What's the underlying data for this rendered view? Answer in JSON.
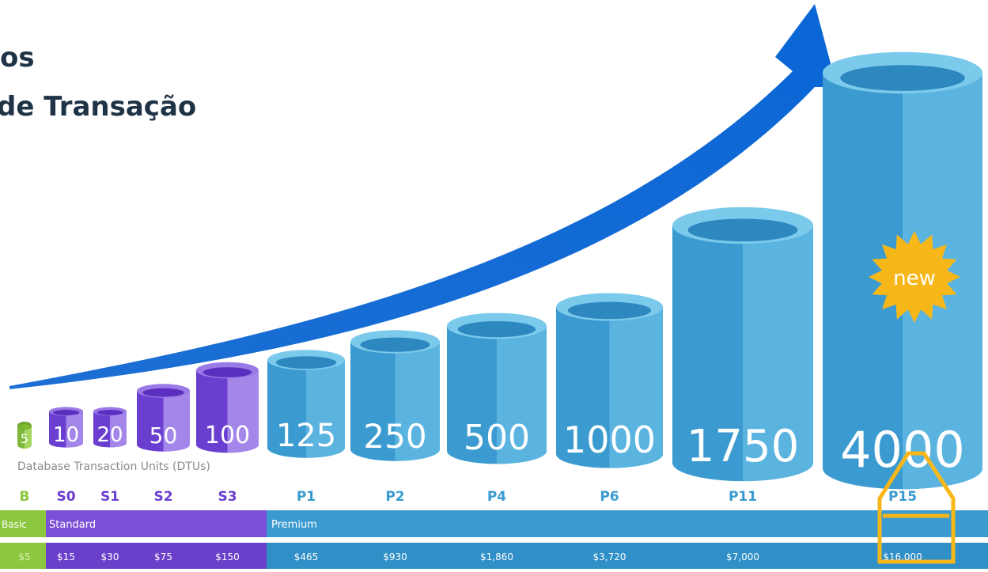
{
  "title": {
    "lines": [
      "os",
      "de Transação"
    ]
  },
  "cylinders": [
    {
      "dtu": "5",
      "tier": "B",
      "price": "$5"
    },
    {
      "dtu": "10",
      "tier": "S0",
      "price": "$15"
    },
    {
      "dtu": "20",
      "tier": "S1",
      "price": "$30"
    },
    {
      "dtu": "50",
      "tier": "S2",
      "price": "$75"
    },
    {
      "dtu": "100",
      "tier": "S3",
      "price": "$150"
    },
    {
      "dtu": "125",
      "tier": "P1",
      "price": "$465"
    },
    {
      "dtu": "250",
      "tier": "P2",
      "price": "$930"
    },
    {
      "dtu": "500",
      "tier": "P4",
      "price": "$1,860"
    },
    {
      "dtu": "1000",
      "tier": "P6",
      "price": "$3,720"
    },
    {
      "dtu": "1750",
      "tier": "P11",
      "price": "$7,000"
    },
    {
      "dtu": "4000",
      "tier": "P15",
      "price": "$16,000"
    }
  ],
  "axis_caption": "Database Transaction Units (DTUs)",
  "bands": [
    "Basic",
    "Standard",
    "Premium"
  ],
  "badge": "new"
}
